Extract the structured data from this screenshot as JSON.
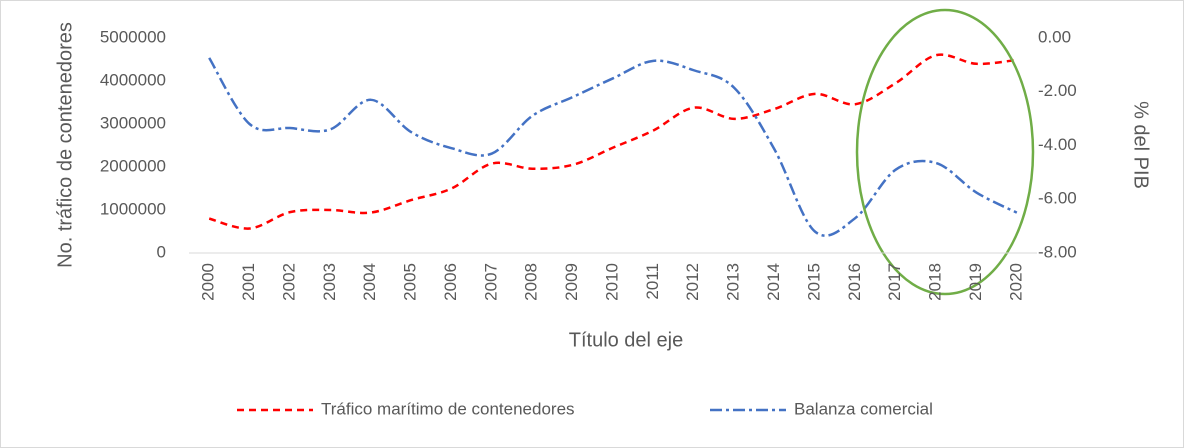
{
  "chart_data": {
    "type": "line",
    "x_label": "Título del eje",
    "y_label": "No. tráfico de contenedores",
    "y2_label": "% del PIB",
    "categories": [
      "2000",
      "2001",
      "2002",
      "2003",
      "2004",
      "2005",
      "2006",
      "2007",
      "2008",
      "2009",
      "2010",
      "2011",
      "2012",
      "2013",
      "2014",
      "2015",
      "2016",
      "2017",
      "2018",
      "2019",
      "2020"
    ],
    "series": [
      {
        "name": "Tráfico marítimo de contenedores",
        "color": "#ff0000",
        "dash": "7,5",
        "values": [
          800000,
          570000,
          950000,
          1000000,
          940000,
          1230000,
          1500000,
          2080000,
          1960000,
          2050000,
          2450000,
          2850000,
          3380000,
          3120000,
          3350000,
          3700000,
          3460000,
          3950000,
          4600000,
          4400000,
          4490000
        ]
      },
      {
        "name": "Balanza comercial",
        "color": "#4472c4",
        "dash": "12,4,3,4",
        "axis": "y2",
        "values": [
          -0.74,
          -3.2,
          -3.35,
          -3.4,
          -2.3,
          -3.5,
          -4.1,
          -4.3,
          -2.9,
          -2.2,
          -1.5,
          -0.85,
          -1.2,
          -1.85,
          -4.15,
          -7.2,
          -6.7,
          -4.9,
          -4.65,
          -5.75,
          -6.5
        ]
      }
    ],
    "ylim": [
      0,
      5000000
    ],
    "yticks": [
      0,
      1000000,
      2000000,
      3000000,
      4000000,
      5000000
    ],
    "y2lim": [
      -8,
      0
    ],
    "y2ticks": [
      {
        "value": -8,
        "label": "-8.00"
      },
      {
        "value": -6,
        "label": "-6.00"
      },
      {
        "value": -4,
        "label": "-4.00"
      },
      {
        "value": -2,
        "label": "-2.00"
      },
      {
        "value": 0,
        "label": "0.00"
      }
    ],
    "grid": false,
    "smooth": true,
    "legend": "bottom"
  }
}
